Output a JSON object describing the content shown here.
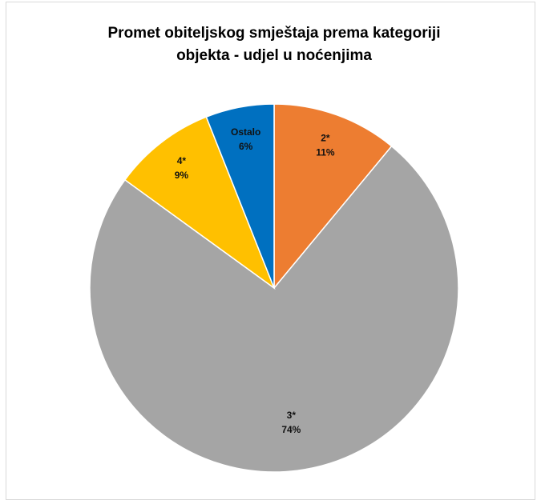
{
  "chart_data": {
    "type": "pie",
    "title": [
      "Promet obiteljskog smještaja prema kategoriji",
      "objekta - udjel u noćenjima"
    ],
    "categories": [
      "2*",
      "3*",
      "4*",
      "Ostalo"
    ],
    "values": [
      11,
      74,
      9,
      6
    ],
    "value_labels": [
      "11%",
      "74%",
      "9%",
      "6%"
    ],
    "colors": [
      "#ed7d31",
      "#a5a5a5",
      "#ffc000",
      "#0070c0"
    ]
  }
}
